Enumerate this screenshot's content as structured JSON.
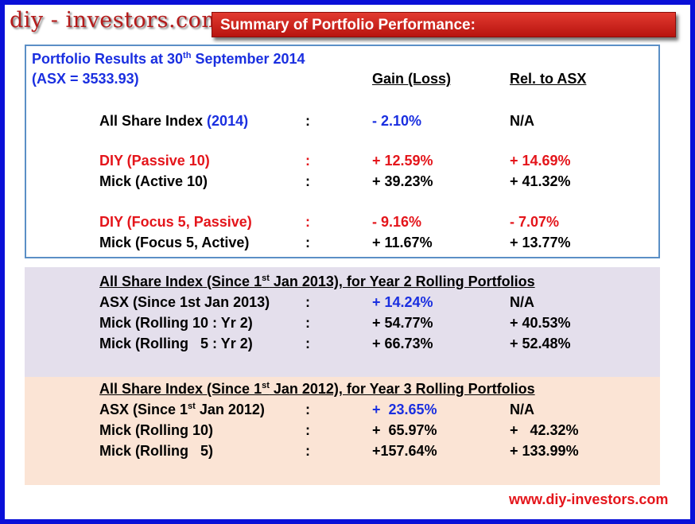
{
  "brand": {
    "logo": "diy - investors.com",
    "footer_url": "www.diy-investors.com"
  },
  "banner": {
    "title": "Summary of Portfolio Performance:"
  },
  "section1": {
    "title_pre": "Portfolio Results at 30",
    "title_sup": "th",
    "title_post": " September 2014",
    "asx": "(ASX = 3533.93)",
    "col_gain": "Gain (Loss)",
    "col_rel": "Rel. to ASX",
    "index_label_pre": "All Share Index ",
    "index_label_year": "(2014)",
    "index_colon": ":",
    "index_gain": "-  2.10%",
    "index_rel": "N/A",
    "rows": [
      {
        "label": "DIY (Passive 10)",
        "colon": ":",
        "gain": "+ 12.59%",
        "rel": "+ 14.69%"
      },
      {
        "label": "Mick (Active 10)",
        "colon": ":",
        "gain": "+  39.23%",
        "rel": "+ 41.32%"
      },
      {
        "label": "DIY (Focus 5, Passive)",
        "colon": ":",
        "gain": "-    9.16%",
        "rel": "-    7.07%"
      },
      {
        "label": "Mick (Focus 5, Active)",
        "colon": ":",
        "gain": "+ 11.67%",
        "rel": "+ 13.77%"
      }
    ]
  },
  "section2": {
    "title_pre": "All Share Index (Since 1",
    "title_sup": "st",
    "title_post": " Jan 2013), for Year 2 Rolling Portfolios",
    "rows": [
      {
        "label": "ASX (Since 1st Jan 2013)",
        "colon": ":",
        "gain": "+ 14.24%",
        "rel": "N/A"
      },
      {
        "label": "Mick (Rolling 10 : Yr 2)",
        "colon": ":",
        "gain": "+ 54.77%",
        "rel": "+ 40.53%"
      },
      {
        "label": "Mick (Rolling   5 : Yr 2)",
        "colon": ":",
        "gain": "+ 66.73%",
        "rel": "+ 52.48%"
      }
    ]
  },
  "section3": {
    "title_pre": "All Share Index (Since 1",
    "title_sup": "st",
    "title_post": " Jan 2012), for Year 3 Rolling Portfolios",
    "asx_pre": "ASX (Since 1",
    "asx_sup": "st",
    "asx_post": " Jan 2012)",
    "asx_colon": ":",
    "asx_gain": "+  23.65%",
    "asx_rel": "N/A",
    "rows": [
      {
        "label": "Mick (Rolling 10)",
        "colon": ":",
        "gain": "+  65.97%",
        "rel": "+   42.32%"
      },
      {
        "label": "Mick (Rolling   5)",
        "colon": ":",
        "gain": "+157.64%",
        "rel": "+ 133.99%"
      }
    ]
  }
}
